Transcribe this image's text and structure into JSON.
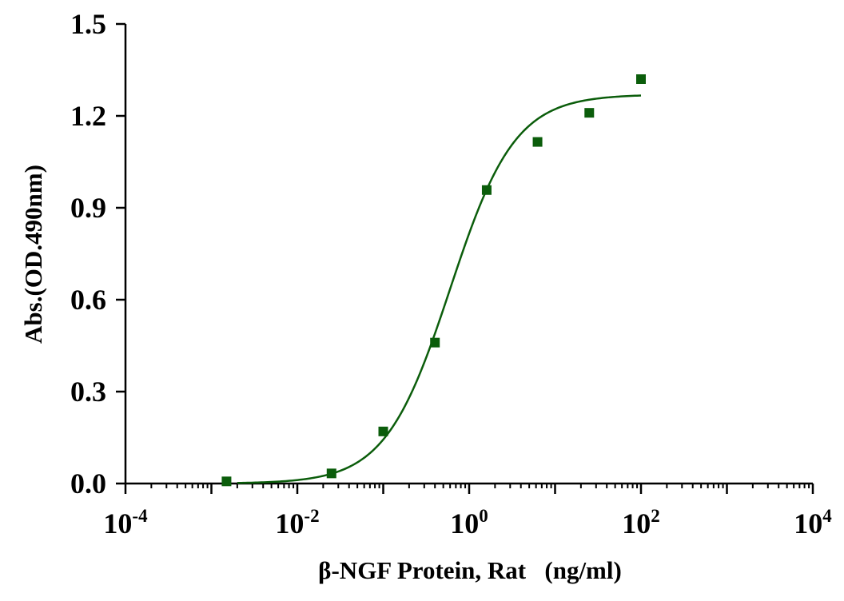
{
  "chart_data": {
    "type": "scatter",
    "title": "",
    "xlabel": "β-NGF Protein, Rat   (ng/ml)",
    "ylabel": "Abs.(OD.490nm)",
    "xscale": "log10",
    "xlim": [
      0.0001,
      10000
    ],
    "ylim": [
      0,
      1.5
    ],
    "grid": false,
    "legend": "none",
    "colors": {
      "series": "#0b5d0b",
      "axis": "#000000"
    },
    "y_ticks": [
      {
        "value": 0.0,
        "label": "0.0"
      },
      {
        "value": 0.3,
        "label": "0.3"
      },
      {
        "value": 0.6,
        "label": "0.6"
      },
      {
        "value": 0.9,
        "label": "0.9"
      },
      {
        "value": 1.2,
        "label": "1.2"
      },
      {
        "value": 1.5,
        "label": "1.5"
      }
    ],
    "x_ticks": [
      {
        "value": 0.0001,
        "base": "10",
        "exp": "-4"
      },
      {
        "value": 0.01,
        "base": "10",
        "exp": "-2"
      },
      {
        "value": 1,
        "base": "10",
        "exp": "0"
      },
      {
        "value": 100,
        "base": "10",
        "exp": "2"
      },
      {
        "value": 10000,
        "base": "10",
        "exp": "4"
      }
    ],
    "series": [
      {
        "marker": "square",
        "x": [
          0.0015,
          0.025,
          0.1,
          0.4,
          1.6,
          6.25,
          25,
          100
        ],
        "y": [
          0.007,
          0.033,
          0.17,
          0.46,
          0.958,
          1.115,
          1.21,
          1.32
        ]
      }
    ],
    "fit": {
      "model": "4PL",
      "bottom": 0.0,
      "top": 1.27,
      "ec50": 0.6,
      "hill": 1.15,
      "x_range": [
        0.002,
        100
      ]
    }
  }
}
